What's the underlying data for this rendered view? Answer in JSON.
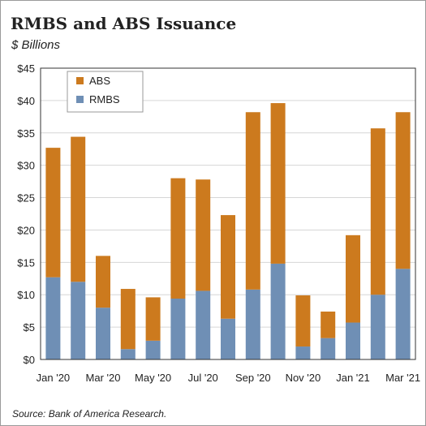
{
  "chart_data": {
    "type": "bar",
    "stacked": true,
    "title": "RMBS and ABS Issuance",
    "subtitle": "$ Billions",
    "source": "Source: Bank of America Research.",
    "x_tick_labels": [
      "Jan '20",
      "Mar '20",
      "May '20",
      "Jul '20",
      "Sep '20",
      "Nov '20",
      "Jan '21",
      "Mar '21"
    ],
    "months": [
      "Jan '20",
      "Feb '20",
      "Mar '20",
      "Apr '20",
      "May '20",
      "Jun '20",
      "Jul '20",
      "Aug '20",
      "Sep '20",
      "Oct '20",
      "Nov '20",
      "Dec '20",
      "Jan '21",
      "Feb '21",
      "Mar '21"
    ],
    "y_tick_labels": [
      "$0",
      "$5",
      "$10",
      "$15",
      "$20",
      "$25",
      "$30",
      "$35",
      "$40",
      "$45"
    ],
    "ylim": [
      0,
      45
    ],
    "legend_position": "top-left",
    "series": [
      {
        "name": "RMBS",
        "color": "#6f8fb5",
        "values": [
          12.7,
          12.0,
          8.0,
          1.6,
          2.9,
          9.4,
          10.6,
          6.3,
          10.8,
          14.8,
          2.0,
          3.3,
          5.7,
          10.0,
          14.0
        ]
      },
      {
        "name": "ABS",
        "color": "#cc7a1e",
        "values": [
          20.0,
          22.4,
          8.0,
          9.3,
          6.7,
          18.6,
          17.2,
          16.0,
          27.4,
          24.8,
          7.9,
          4.1,
          13.5,
          25.7,
          24.2
        ]
      }
    ]
  }
}
